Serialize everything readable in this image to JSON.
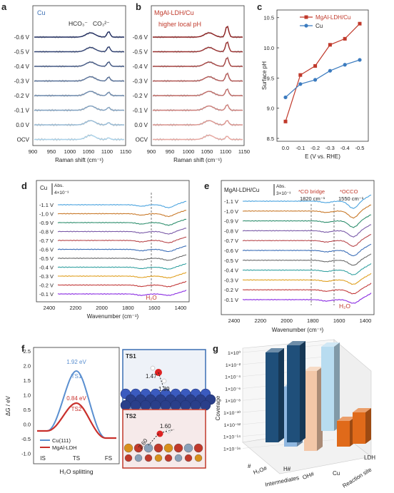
{
  "panels": {
    "a": {
      "letter": "a",
      "sample": "Cu",
      "peak1": "HCO₃⁻",
      "peak2": "CO₃²⁻",
      "xlabel": "Raman shift (cm⁻¹)",
      "xticks": [
        "900",
        "950",
        "1000",
        "1050",
        "1100",
        "1150"
      ],
      "rows": [
        "-0.6 V",
        "-0.5 V",
        "-0.4 V",
        "-0.3 V",
        "-0.2 V",
        "-0.1 V",
        "0.0 V",
        "OCV"
      ]
    },
    "b": {
      "letter": "b",
      "sample": "MgAl-LDH/Cu",
      "note": "higher local pH",
      "xlabel": "Raman shift (cm⁻¹)",
      "xticks": [
        "900",
        "950",
        "1000",
        "1050",
        "1100",
        "1150"
      ],
      "rows": [
        "-0.6 V",
        "-0.5 V",
        "-0.4 V",
        "-0.3 V",
        "-0.2 V",
        "-0.1 V",
        "0.0 V",
        "OCV"
      ]
    },
    "d": {
      "letter": "d",
      "sample": "Cu",
      "scale_label": "Abs.",
      "scale_value": "4×10⁻³",
      "xlabel": "Wavenumber (cm⁻¹)",
      "xticks": [
        "2400",
        "2200",
        "2000",
        "1800",
        "1600",
        "1400"
      ],
      "annotation": "H₂O",
      "rows": [
        "-1.1 V",
        "-1.0 V",
        "-0.9 V",
        "-0.8 V",
        "-0.7 V",
        "-0.6 V",
        "-0.5 V",
        "-0.4 V",
        "-0.3 V",
        "-0.2 V",
        "-0.1 V"
      ]
    },
    "e": {
      "letter": "e",
      "sample": "MgAl-LDH/Cu",
      "scale_label": "Abs.",
      "scale_value": "3×10⁻³",
      "xlabel": "Wavenumber (cm⁻¹)",
      "xticks": [
        "2400",
        "2200",
        "2000",
        "1800",
        "1600",
        "1400"
      ],
      "annot_co": "*CO bridge",
      "annot_co_value": "1820 cm⁻¹",
      "annot_occo": "*OCCO",
      "annot_occo_value": "1550 cm⁻¹",
      "annotation": "H₂O",
      "rows": [
        "-1.1 V",
        "-1.0 V",
        "-0.9 V",
        "-0.8 V",
        "-0.7 V",
        "-0.6 V",
        "-0.5 V",
        "-0.4 V",
        "-0.3 V",
        "-0.2 V",
        "-0.1 V"
      ]
    },
    "f": {
      "letter": "f",
      "ylabel": "ΔG / eV",
      "xlabel": "H₂O splitting",
      "states": [
        "IS",
        "TS",
        "FS"
      ],
      "yticks": [
        "2.5",
        "2.0",
        "1.5",
        "1.0",
        "0.5",
        "0.0",
        "-0.5",
        "-1.0"
      ],
      "ts1_value": "1.92 eV",
      "ts2_value": "0.84 eV",
      "ts1_label": "TS1",
      "ts2_label": "TS2",
      "legend": [
        "Cu(111)",
        "MgAl-LDH"
      ],
      "inset1_title": "TS1",
      "inset1_dist1": "1.47",
      "inset1_dist2": "1.39",
      "inset2_title": "TS2",
      "inset2_dist1": "1.60",
      "inset2_dist2": "2.60"
    },
    "g": {
      "letter": "g",
      "ylabel": "Coverage",
      "yticks": [
        "1×10⁰",
        "1×10⁻²",
        "1×10⁻⁴",
        "1×10⁻⁶",
        "1×10⁻⁸",
        "1×10⁻¹⁰",
        "1×10⁻¹²",
        "1×10⁻¹⁴",
        "1×10⁻¹⁶"
      ],
      "categories": [
        "#",
        "H₂O#",
        "H#",
        "OH#"
      ],
      "category_axis": "Intermediates",
      "sites": [
        "Cu",
        "LDH"
      ],
      "site_axis": "Reaction site"
    }
  },
  "chart_data": [
    {
      "type": "line",
      "panel": "c",
      "title": "",
      "xlabel": "E (V vs. RHE)",
      "ylabel": "Surface pH",
      "categories": [
        "0.0",
        "-0.1",
        "-0.2",
        "-0.3",
        "-0.4",
        "-0.5"
      ],
      "ylim": [
        8.5,
        10.5
      ],
      "yticks": [
        "8.5",
        "9.0",
        "9.5",
        "10.0",
        "10.5"
      ],
      "legend_position": "top-right",
      "series": [
        {
          "name": "MgAl-LDH/Cu",
          "color": "#c0392b",
          "marker": "square",
          "values": [
            8.78,
            9.55,
            9.7,
            10.05,
            10.15,
            10.4
          ]
        },
        {
          "name": "Cu",
          "color": "#3b7bbf",
          "marker": "circle",
          "values": [
            9.18,
            9.4,
            9.47,
            9.62,
            9.72,
            9.8
          ]
        }
      ]
    }
  ]
}
